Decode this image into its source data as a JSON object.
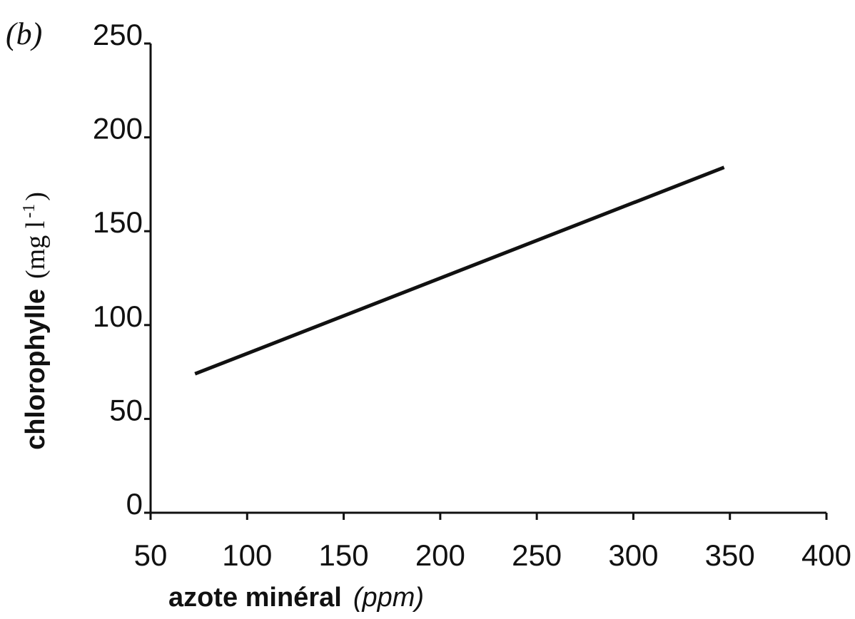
{
  "panel_label": "(b)",
  "chart_data": {
    "type": "line",
    "xlabel": "azote minéral",
    "xlabel_unit": "(ppm)",
    "ylabel": "chlorophylle",
    "ylabel_unit_open": "(mg l",
    "ylabel_unit_sup": "-1",
    "ylabel_unit_close": ")",
    "xlim": [
      50,
      400
    ],
    "ylim": [
      0,
      250
    ],
    "x_ticks": [
      50,
      100,
      150,
      200,
      250,
      300,
      350,
      400
    ],
    "y_ticks": [
      0,
      50,
      100,
      150,
      200,
      250
    ],
    "grid": false,
    "series": [
      {
        "x": [
          73,
          347
        ],
        "y": [
          74,
          184
        ],
        "color": "#111111"
      }
    ]
  }
}
